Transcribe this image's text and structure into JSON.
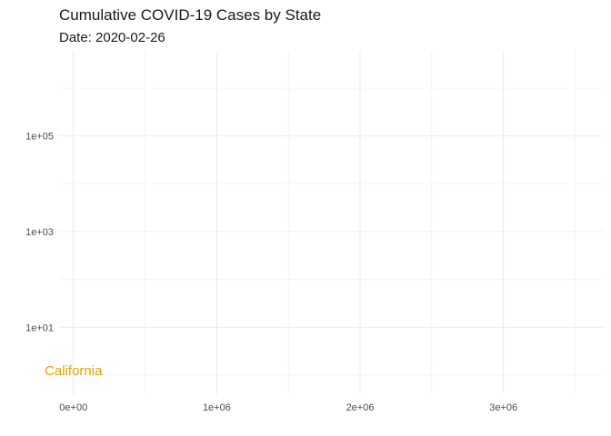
{
  "chart_data": {
    "type": "scatter",
    "title": "Cumulative COVID-19 Cases by State",
    "subtitle": "Date: 2020-02-26",
    "xlabel": "",
    "ylabel": "",
    "x_scale": "linear",
    "y_scale": "log10",
    "xlim": [
      -100000,
      3700000
    ],
    "ylim": [
      0.4,
      6000000
    ],
    "x_ticks": [
      {
        "value": 0,
        "label": "0e+00"
      },
      {
        "value": 1000000,
        "label": "1e+06"
      },
      {
        "value": 2000000,
        "label": "2e+06"
      },
      {
        "value": 3000000,
        "label": "3e+06"
      }
    ],
    "y_ticks": [
      {
        "value": 10,
        "label": "1e+01"
      },
      {
        "value": 1000,
        "label": "1e+03"
      },
      {
        "value": 100000,
        "label": "1e+05"
      }
    ],
    "grid": true,
    "legend": "none",
    "series": [
      {
        "points": [
          {
            "label": "California",
            "x": 0,
            "y": 1,
            "color": "#e69f00"
          }
        ]
      }
    ]
  }
}
